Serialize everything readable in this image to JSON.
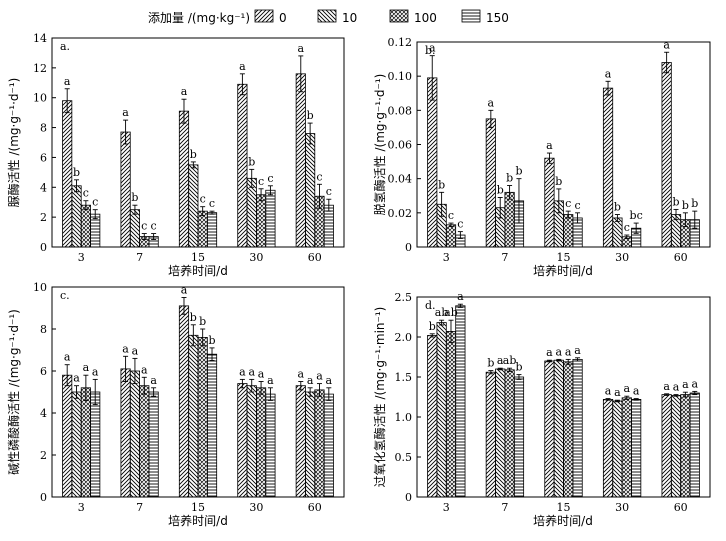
{
  "legend": {
    "title": "添加量 /(mg·kg⁻¹)",
    "entries": [
      {
        "label": "0",
        "pattern": "p-diag-right"
      },
      {
        "label": "10",
        "pattern": "p-diag-left"
      },
      {
        "label": "100",
        "pattern": "p-cross"
      },
      {
        "label": "150",
        "pattern": "p-horiz"
      }
    ]
  },
  "chart_data": [
    {
      "panel": "a.",
      "type": "bar",
      "ylabel": "脲酶活性 /(mg·g⁻¹·d⁻¹)",
      "xlabel": "培养时间/d",
      "categories": [
        "3",
        "7",
        "15",
        "30",
        "60"
      ],
      "ylim": [
        0,
        14
      ],
      "yticks": [
        0,
        2,
        4,
        6,
        8,
        10,
        12,
        14
      ],
      "ytick_labels": [
        "0",
        "2",
        "4",
        "6",
        "8",
        "10",
        "12",
        "14"
      ],
      "series": [
        {
          "name": "0",
          "values": [
            9.8,
            7.7,
            9.1,
            10.9,
            11.6
          ],
          "errors": [
            0.8,
            0.8,
            0.8,
            0.7,
            1.2
          ],
          "letters": [
            "a",
            "a",
            "a",
            "a",
            "a"
          ]
        },
        {
          "name": "10",
          "values": [
            4.1,
            2.5,
            5.5,
            4.6,
            7.6
          ],
          "errors": [
            0.4,
            0.3,
            0.2,
            0.6,
            0.7
          ],
          "letters": [
            "b",
            "b",
            "b",
            "b",
            "b"
          ]
        },
        {
          "name": "100",
          "values": [
            2.8,
            0.7,
            2.4,
            3.5,
            3.4
          ],
          "errors": [
            0.3,
            0.2,
            0.3,
            0.4,
            0.8
          ],
          "letters": [
            "c",
            "c",
            "c",
            "c",
            "c"
          ]
        },
        {
          "name": "150",
          "values": [
            2.2,
            0.7,
            2.3,
            3.8,
            2.8
          ],
          "errors": [
            0.3,
            0.2,
            0.1,
            0.3,
            0.4
          ],
          "letters": [
            "c",
            "c",
            "c",
            "c",
            "c"
          ]
        }
      ]
    },
    {
      "panel": "b.",
      "type": "bar",
      "ylabel": "脱氢酶活性 /(mg·g⁻¹·d⁻¹)",
      "xlabel": "培养时间/d",
      "categories": [
        "3",
        "7",
        "15",
        "30",
        "60"
      ],
      "ylim": [
        0,
        0.12
      ],
      "yticks": [
        0,
        0.02,
        0.04,
        0.06,
        0.08,
        0.1,
        0.12
      ],
      "ytick_labels": [
        "0",
        "0.02",
        "0.04",
        "0.06",
        "0.08",
        "0.10",
        "0.12"
      ],
      "series": [
        {
          "name": "0",
          "values": [
            0.099,
            0.075,
            0.052,
            0.093,
            0.108
          ],
          "errors": [
            0.013,
            0.005,
            0.003,
            0.004,
            0.006
          ],
          "letters": [
            "a",
            "a",
            "a",
            "a",
            "a"
          ]
        },
        {
          "name": "10",
          "values": [
            0.025,
            0.023,
            0.027,
            0.017,
            0.019
          ],
          "errors": [
            0.007,
            0.006,
            0.007,
            0.002,
            0.003
          ],
          "letters": [
            "b",
            "b",
            "b",
            "b",
            "b"
          ]
        },
        {
          "name": "100",
          "values": [
            0.013,
            0.032,
            0.019,
            0.006,
            0.016
          ],
          "errors": [
            0.001,
            0.004,
            0.002,
            0.001,
            0.004
          ],
          "letters": [
            "c",
            "b",
            "c",
            "c",
            "b"
          ]
        },
        {
          "name": "150",
          "values": [
            0.007,
            0.027,
            0.017,
            0.011,
            0.016
          ],
          "errors": [
            0.002,
            0.013,
            0.003,
            0.003,
            0.005
          ],
          "letters": [
            "c",
            "b",
            "c",
            "bc",
            "b"
          ]
        }
      ]
    },
    {
      "panel": "c.",
      "type": "bar",
      "ylabel": "碱性磷酸酶活性 /(mg·g⁻¹·d⁻¹)",
      "xlabel": "培养时间/d",
      "categories": [
        "3",
        "7",
        "15",
        "30",
        "60"
      ],
      "ylim": [
        0,
        10
      ],
      "yticks": [
        0,
        2,
        4,
        6,
        8,
        10
      ],
      "ytick_labels": [
        "0",
        "2",
        "4",
        "6",
        "8",
        "10"
      ],
      "series": [
        {
          "name": "0",
          "values": [
            5.8,
            6.1,
            9.1,
            5.4,
            5.3
          ],
          "errors": [
            0.5,
            0.6,
            0.4,
            0.2,
            0.2
          ],
          "letters": [
            "a",
            "a",
            "a",
            "a",
            "a"
          ]
        },
        {
          "name": "10",
          "values": [
            5.0,
            6.0,
            7.7,
            5.3,
            5.0
          ],
          "errors": [
            0.3,
            0.6,
            0.5,
            0.3,
            0.2
          ],
          "letters": [
            "a",
            "a",
            "b",
            "a",
            "a"
          ]
        },
        {
          "name": "100",
          "values": [
            5.2,
            5.3,
            7.6,
            5.2,
            5.1
          ],
          "errors": [
            0.6,
            0.4,
            0.4,
            0.3,
            0.3
          ],
          "letters": [
            "a",
            "a",
            "b",
            "a",
            "a"
          ]
        },
        {
          "name": "150",
          "values": [
            5.0,
            5.0,
            6.8,
            4.9,
            4.9
          ],
          "errors": [
            0.6,
            0.2,
            0.3,
            0.3,
            0.3
          ],
          "letters": [
            "a",
            "a",
            "b",
            "a",
            "a"
          ]
        }
      ]
    },
    {
      "panel": "d.",
      "type": "bar",
      "ylabel": "过氧化氢酶活性 /(mg·g⁻¹·min⁻¹)",
      "xlabel": "培养时间/d",
      "categories": [
        "3",
        "7",
        "15",
        "30",
        "60"
      ],
      "ylim": [
        0,
        2.5
      ],
      "yticks": [
        0,
        0.5,
        1.0,
        1.5,
        2.0,
        2.5
      ],
      "ytick_labels": [
        "0",
        "0.5",
        "1.0",
        "1.5",
        "2.0",
        "2.5"
      ],
      "series": [
        {
          "name": "0",
          "values": [
            2.02,
            1.56,
            1.7,
            1.22,
            1.28
          ],
          "errors": [
            0.02,
            0.02,
            0.01,
            0.01,
            0.01
          ],
          "letters": [
            "b",
            "b",
            "a",
            "a",
            "a"
          ]
        },
        {
          "name": "10",
          "values": [
            2.18,
            1.6,
            1.71,
            1.2,
            1.27
          ],
          "errors": [
            0.03,
            0.01,
            0.01,
            0.01,
            0.01
          ],
          "letters": [
            "ab",
            "a",
            "a",
            "a",
            "a"
          ]
        },
        {
          "name": "100",
          "values": [
            2.07,
            1.59,
            1.69,
            1.24,
            1.28
          ],
          "errors": [
            0.14,
            0.02,
            0.03,
            0.02,
            0.03
          ],
          "letters": [
            "ab",
            "ab",
            "a",
            "a",
            "a"
          ]
        },
        {
          "name": "150",
          "values": [
            2.39,
            1.5,
            1.72,
            1.22,
            1.3
          ],
          "errors": [
            0.02,
            0.03,
            0.02,
            0.01,
            0.02
          ],
          "letters": [
            "a",
            "b",
            "a",
            "a",
            "a"
          ]
        }
      ]
    }
  ]
}
